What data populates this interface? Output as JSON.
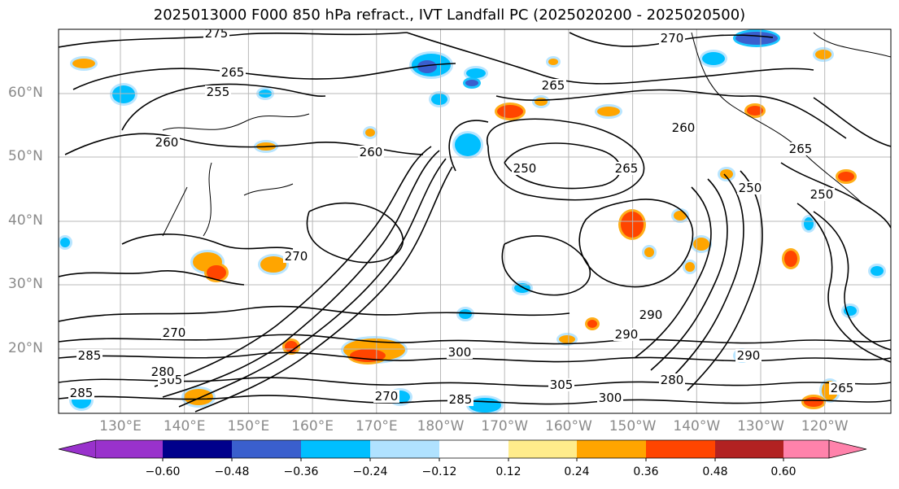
{
  "title": "2025013000 F000 850 hPa refract., IVT Landfall PC (2025020200 - 2025020500)",
  "lat_labels": [
    "60°N",
    "50°N",
    "40°N",
    "30°N",
    "20°N"
  ],
  "lon_labels": [
    "130°E",
    "140°E",
    "150°E",
    "160°E",
    "170°E",
    "180°W",
    "170°W",
    "160°W",
    "150°W",
    "140°W",
    "130°W",
    "120°W"
  ],
  "colorbar": {
    "ticks": [
      "−0.60",
      "−0.48",
      "−0.36",
      "−0.24",
      "−0.12",
      "0.12",
      "0.24",
      "0.36",
      "0.48",
      "0.60"
    ],
    "colors": [
      "#9932cc",
      "#00008b",
      "#3a5fcd",
      "#00bfff",
      "#b0e2ff",
      "#ffffff",
      "#ffec8b",
      "#ffa500",
      "#ff4500",
      "#b22222",
      "#ff82ab"
    ]
  },
  "contour_labels": [
    "275",
    "270",
    "265",
    "255",
    "260",
    "265",
    "260",
    "250",
    "265",
    "260",
    "270",
    "250",
    "265",
    "250",
    "270",
    "285",
    "280",
    "290",
    "300",
    "290",
    "305",
    "300",
    "285",
    "305",
    "280",
    "285",
    "290",
    "265",
    "270"
  ]
}
